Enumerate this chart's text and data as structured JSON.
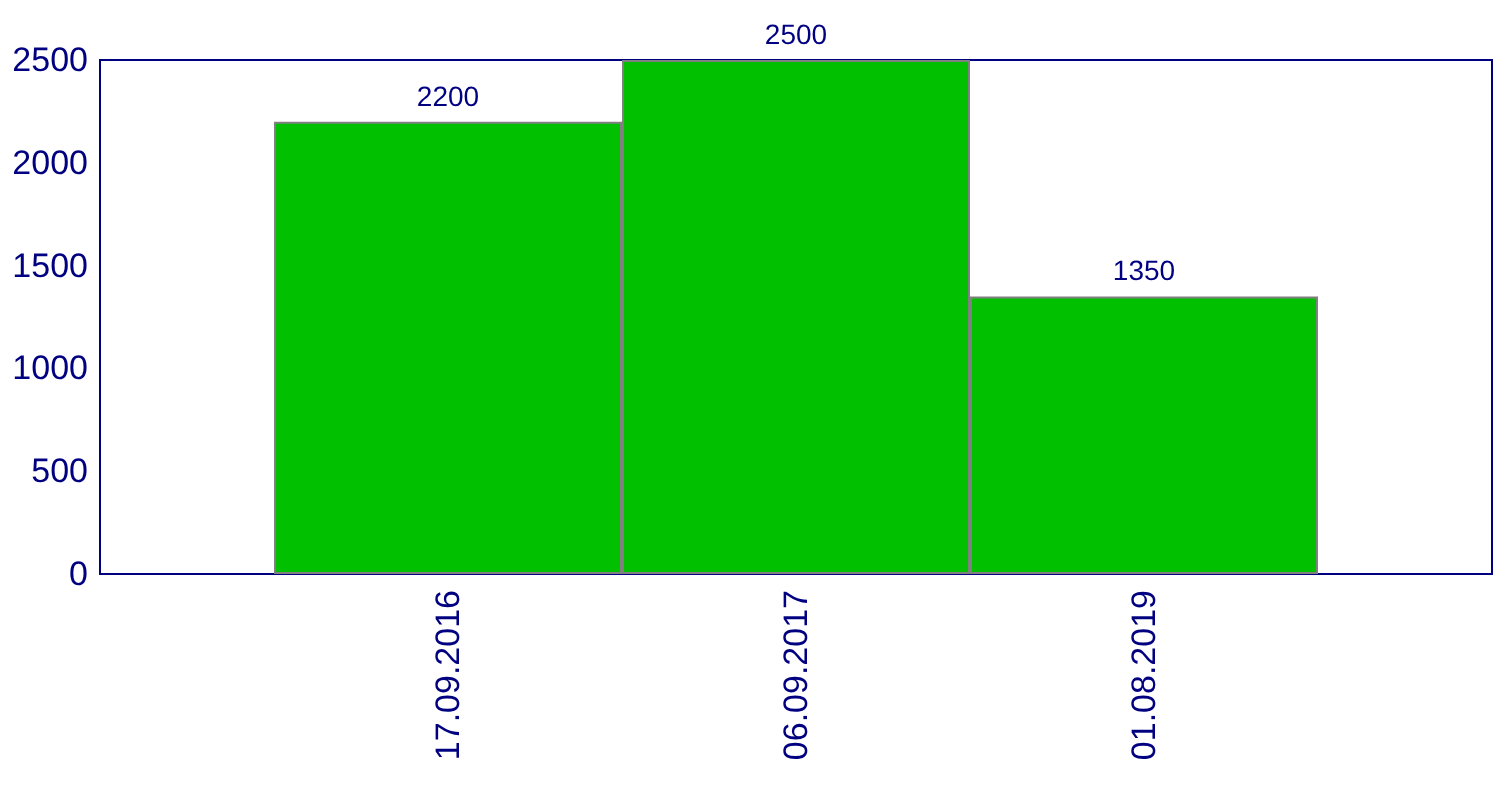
{
  "chart_data": {
    "type": "bar",
    "categories": [
      "17.09.2016",
      "06.09.2017",
      "01.08.2019"
    ],
    "values": [
      2200,
      2500,
      1350
    ],
    "color": "#00c000",
    "ylim": [
      0,
      2500
    ],
    "yticks": [
      0,
      500,
      1000,
      1500,
      2000,
      2500
    ],
    "data_labels": true
  }
}
